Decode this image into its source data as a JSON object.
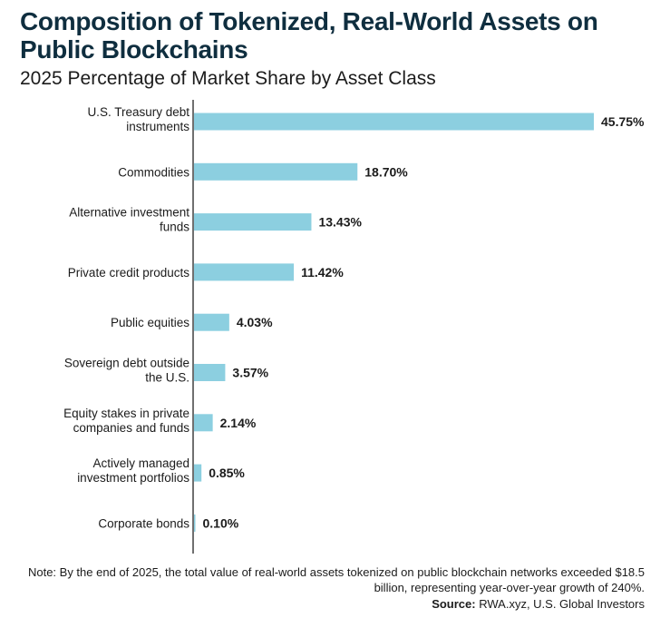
{
  "title": "Composition of Tokenized, Real-World Assets on Public Blockchains",
  "subtitle": "2025 Percentage of Market Share by Asset Class",
  "note": "Note: By the end of 2025, the total value of real-world assets tokenized on public blockchain networks exceeded $18.5 billion, representing year-over-year growth of 240%.",
  "source_label": "Source:",
  "source_text": "RWA.xyz, U.S. Global Investors",
  "colors": {
    "bar": "#8ccfe0",
    "axis": "#222222",
    "title": "#0f2e3f"
  },
  "chart_data": {
    "type": "bar",
    "orientation": "horizontal",
    "categories": [
      "U.S. Treasury debt instruments",
      "Commodities",
      "Alternative investment funds",
      "Private credit products",
      "Public equities",
      "Sovereign debt outside the U.S.",
      "Equity stakes in private companies and funds",
      "Actively managed investment portfolios",
      "Corporate bonds"
    ],
    "values": [
      45.75,
      18.7,
      13.43,
      11.42,
      4.03,
      3.57,
      2.14,
      0.85,
      0.1
    ],
    "data_labels": [
      "45.75%",
      "18.70%",
      "13.43%",
      "11.42%",
      "4.03%",
      "3.57%",
      "2.14%",
      "0.85%",
      "0.10%"
    ],
    "xlim": [
      0,
      50
    ],
    "grid": false
  }
}
